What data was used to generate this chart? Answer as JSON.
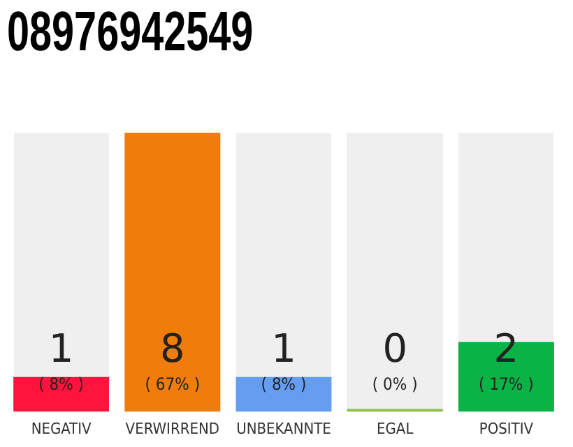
{
  "chart_data": {
    "type": "bar",
    "title": "08976942549",
    "categories": [
      "NEGATIV",
      "VERWIRREND",
      "UNBEKANNTE",
      "EGAL",
      "POSITIV"
    ],
    "values": [
      1,
      8,
      1,
      0,
      2
    ],
    "colors": [
      "#fe143c",
      "#f07d0b",
      "#659ef0",
      "#8bc34a",
      "#0bb346"
    ],
    "tick_labels": "x",
    "grid": false,
    "legend": false,
    "data_labels": true,
    "annotations": [
      "( 8% )",
      "( 67% )",
      "( 8% )",
      "( 0% )",
      "( 17% )"
    ]
  }
}
